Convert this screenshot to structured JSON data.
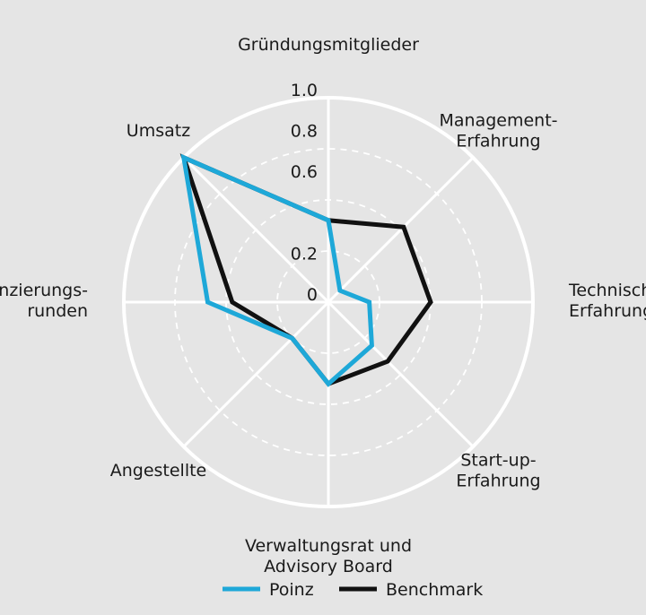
{
  "chart_data": {
    "type": "radar",
    "axes": [
      [
        "Gründungsmitglieder"
      ],
      [
        "Management-",
        "Erfahrung"
      ],
      [
        "Technische",
        "Erfahrung"
      ],
      [
        "Start-up-",
        "Erfahrung"
      ],
      [
        "Verwaltungsrat und",
        "Advisory Board"
      ],
      [
        "Angestellte"
      ],
      [
        "Finanzierungs-",
        "runden"
      ],
      [
        "Umsatz"
      ]
    ],
    "rlim": [
      0,
      1.0
    ],
    "ticks": [
      {
        "value": 0,
        "label": "0"
      },
      {
        "value": 0.2,
        "label": "0.2"
      },
      {
        "value": 0.6,
        "label": "0.6"
      },
      {
        "value": 0.8,
        "label": "0.8"
      },
      {
        "value": 1.0,
        "label": "1.0"
      }
    ],
    "grid": true,
    "legend_position": "bottom",
    "series": [
      {
        "name": "Poinz",
        "color": "#1ea8d8",
        "values": [
          0.4,
          0.08,
          0.2,
          0.3,
          0.4,
          0.25,
          0.59,
          1.0
        ]
      },
      {
        "name": "Benchmark",
        "color": "#111111",
        "values": [
          0.4,
          0.52,
          0.5,
          0.41,
          0.4,
          0.25,
          0.47,
          1.0
        ]
      }
    ]
  }
}
